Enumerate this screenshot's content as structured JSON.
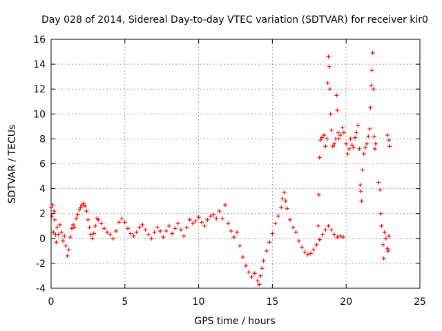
{
  "chart_data": {
    "type": "scatter",
    "title": "Day 028 of 2014, Sidereal Day-to-day VTEC variation (SDTVAR) for receiver kir0",
    "xlabel": "GPS time / hours",
    "ylabel": "SDTVAR / TECUs",
    "xlim": [
      0,
      25
    ],
    "ylim": [
      -4,
      16
    ],
    "xticks": [
      0,
      5,
      10,
      15,
      20,
      25
    ],
    "yticks": [
      -4,
      -2,
      0,
      2,
      4,
      6,
      8,
      10,
      12,
      14,
      16
    ],
    "grid": true,
    "legend": "none",
    "marker": "+",
    "series": [
      {
        "name": "SDTVAR",
        "color": "#ff0000",
        "points": [
          [
            0.0,
            2.5
          ],
          [
            0.05,
            1.8
          ],
          [
            0.1,
            2.7
          ],
          [
            0.15,
            0.5
          ],
          [
            0.2,
            2.2
          ],
          [
            0.25,
            1.5
          ],
          [
            0.3,
            0.3
          ],
          [
            0.35,
            -0.3
          ],
          [
            0.4,
            0.9
          ],
          [
            0.5,
            0.3
          ],
          [
            0.6,
            1.1
          ],
          [
            0.7,
            0.5
          ],
          [
            0.8,
            -0.2
          ],
          [
            0.9,
            0.2
          ],
          [
            1.0,
            -0.6
          ],
          [
            1.1,
            -1.4
          ],
          [
            1.2,
            -0.9
          ],
          [
            1.3,
            0.1
          ],
          [
            1.4,
            0.8
          ],
          [
            1.5,
            1.1
          ],
          [
            1.6,
            0.9
          ],
          [
            1.7,
            1.6
          ],
          [
            1.8,
            1.9
          ],
          [
            1.9,
            2.3
          ],
          [
            2.0,
            2.5
          ],
          [
            2.1,
            2.7
          ],
          [
            2.2,
            2.8
          ],
          [
            2.3,
            2.6
          ],
          [
            2.4,
            2.2
          ],
          [
            2.5,
            1.5
          ],
          [
            2.6,
            0.9
          ],
          [
            2.7,
            0.3
          ],
          [
            2.8,
            0.0
          ],
          [
            2.9,
            0.4
          ],
          [
            3.0,
            1.0
          ],
          [
            3.1,
            1.6
          ],
          [
            3.2,
            1.5
          ],
          [
            3.4,
            1.2
          ],
          [
            3.6,
            0.8
          ],
          [
            3.8,
            0.5
          ],
          [
            4.0,
            0.3
          ],
          [
            4.2,
            0.0
          ],
          [
            4.4,
            0.6
          ],
          [
            4.6,
            1.3
          ],
          [
            4.8,
            1.6
          ],
          [
            5.0,
            1.3
          ],
          [
            5.2,
            0.8
          ],
          [
            5.4,
            0.4
          ],
          [
            5.6,
            0.2
          ],
          [
            5.8,
            0.5
          ],
          [
            6.0,
            0.9
          ],
          [
            6.2,
            1.1
          ],
          [
            6.4,
            0.7
          ],
          [
            6.6,
            0.3
          ],
          [
            6.8,
            0.0
          ],
          [
            7.0,
            0.5
          ],
          [
            7.2,
            0.9
          ],
          [
            7.4,
            0.6
          ],
          [
            7.6,
            0.1
          ],
          [
            7.8,
            0.6
          ],
          [
            8.0,
            1.0
          ],
          [
            8.2,
            0.4
          ],
          [
            8.4,
            0.8
          ],
          [
            8.6,
            1.2
          ],
          [
            8.8,
            0.7
          ],
          [
            9.0,
            0.2
          ],
          [
            9.2,
            0.9
          ],
          [
            9.4,
            1.5
          ],
          [
            9.6,
            1.2
          ],
          [
            9.8,
            1.4
          ],
          [
            10.0,
            1.7
          ],
          [
            10.2,
            1.3
          ],
          [
            10.4,
            1.0
          ],
          [
            10.6,
            1.5
          ],
          [
            10.8,
            1.8
          ],
          [
            11.0,
            1.9
          ],
          [
            11.2,
            1.6
          ],
          [
            11.4,
            2.2
          ],
          [
            11.6,
            1.6
          ],
          [
            11.8,
            2.7
          ],
          [
            12.0,
            1.2
          ],
          [
            12.2,
            0.6
          ],
          [
            12.4,
            0.1
          ],
          [
            12.6,
            0.5
          ],
          [
            12.8,
            -0.6
          ],
          [
            13.0,
            -1.5
          ],
          [
            13.2,
            -2.2
          ],
          [
            13.4,
            -2.7
          ],
          [
            13.6,
            -3.1
          ],
          [
            13.8,
            -2.8
          ],
          [
            14.0,
            -3.4
          ],
          [
            14.1,
            -3.7
          ],
          [
            14.2,
            -3.0
          ],
          [
            14.3,
            -2.4
          ],
          [
            14.4,
            -1.8
          ],
          [
            14.6,
            -1.0
          ],
          [
            14.8,
            -0.3
          ],
          [
            15.0,
            0.4
          ],
          [
            15.2,
            1.2
          ],
          [
            15.4,
            1.8
          ],
          [
            15.6,
            2.5
          ],
          [
            15.7,
            3.2
          ],
          [
            15.8,
            3.7
          ],
          [
            15.9,
            3.0
          ],
          [
            16.0,
            2.4
          ],
          [
            16.2,
            1.5
          ],
          [
            16.4,
            0.9
          ],
          [
            16.6,
            0.5
          ],
          [
            16.8,
            -0.2
          ],
          [
            17.0,
            -0.7
          ],
          [
            17.2,
            -1.1
          ],
          [
            17.4,
            -1.3
          ],
          [
            17.6,
            -1.2
          ],
          [
            17.8,
            -0.9
          ],
          [
            18.0,
            -0.5
          ],
          [
            18.2,
            -0.1
          ],
          [
            18.4,
            0.3
          ],
          [
            18.6,
            0.7
          ],
          [
            18.8,
            1.0
          ],
          [
            19.0,
            0.7
          ],
          [
            19.2,
            0.3
          ],
          [
            19.4,
            0.1
          ],
          [
            19.6,
            0.2
          ],
          [
            19.8,
            0.1
          ],
          [
            18.1,
            1.0
          ],
          [
            18.15,
            3.5
          ],
          [
            18.2,
            6.5
          ],
          [
            18.25,
            7.9
          ],
          [
            18.35,
            8.1
          ],
          [
            18.5,
            8.3
          ],
          [
            18.6,
            7.4
          ],
          [
            18.7,
            8.0
          ],
          [
            18.75,
            12.5
          ],
          [
            18.8,
            14.6
          ],
          [
            18.85,
            13.8
          ],
          [
            18.9,
            12.0
          ],
          [
            18.95,
            10.0
          ],
          [
            19.0,
            8.7
          ],
          [
            19.1,
            7.4
          ],
          [
            19.2,
            7.6
          ],
          [
            19.3,
            8.0
          ],
          [
            19.35,
            11.5
          ],
          [
            19.4,
            10.3
          ],
          [
            19.45,
            8.5
          ],
          [
            19.5,
            8.0
          ],
          [
            19.6,
            8.3
          ],
          [
            19.75,
            8.9
          ],
          [
            19.85,
            8.5
          ],
          [
            20.0,
            7.6
          ],
          [
            20.1,
            6.8
          ],
          [
            20.2,
            7.2
          ],
          [
            20.3,
            8.0
          ],
          [
            20.4,
            7.5
          ],
          [
            20.5,
            7.3
          ],
          [
            20.6,
            8.1
          ],
          [
            20.7,
            8.5
          ],
          [
            20.8,
            9.1
          ],
          [
            20.9,
            7.2
          ],
          [
            20.95,
            4.3
          ],
          [
            21.0,
            3.8
          ],
          [
            21.05,
            3.0
          ],
          [
            21.1,
            5.5
          ],
          [
            21.2,
            6.8
          ],
          [
            21.3,
            7.3
          ],
          [
            21.4,
            7.6
          ],
          [
            21.5,
            8.2
          ],
          [
            21.6,
            8.8
          ],
          [
            21.65,
            10.5
          ],
          [
            21.7,
            12.3
          ],
          [
            21.75,
            13.5
          ],
          [
            21.8,
            14.9
          ],
          [
            21.85,
            12.0
          ],
          [
            21.9,
            8.2
          ],
          [
            21.95,
            7.2
          ],
          [
            22.0,
            7.6
          ],
          [
            22.2,
            4.5
          ],
          [
            22.3,
            3.9
          ],
          [
            22.35,
            2.0
          ],
          [
            22.4,
            1.0
          ],
          [
            22.5,
            -0.5
          ],
          [
            22.55,
            -1.6
          ],
          [
            22.6,
            0.5
          ],
          [
            22.7,
            0.0
          ],
          [
            22.8,
            -0.8
          ],
          [
            22.85,
            -1.0
          ],
          [
            22.9,
            0.2
          ],
          [
            22.8,
            8.3
          ],
          [
            22.9,
            7.9
          ],
          [
            22.95,
            7.4
          ]
        ]
      }
    ]
  }
}
